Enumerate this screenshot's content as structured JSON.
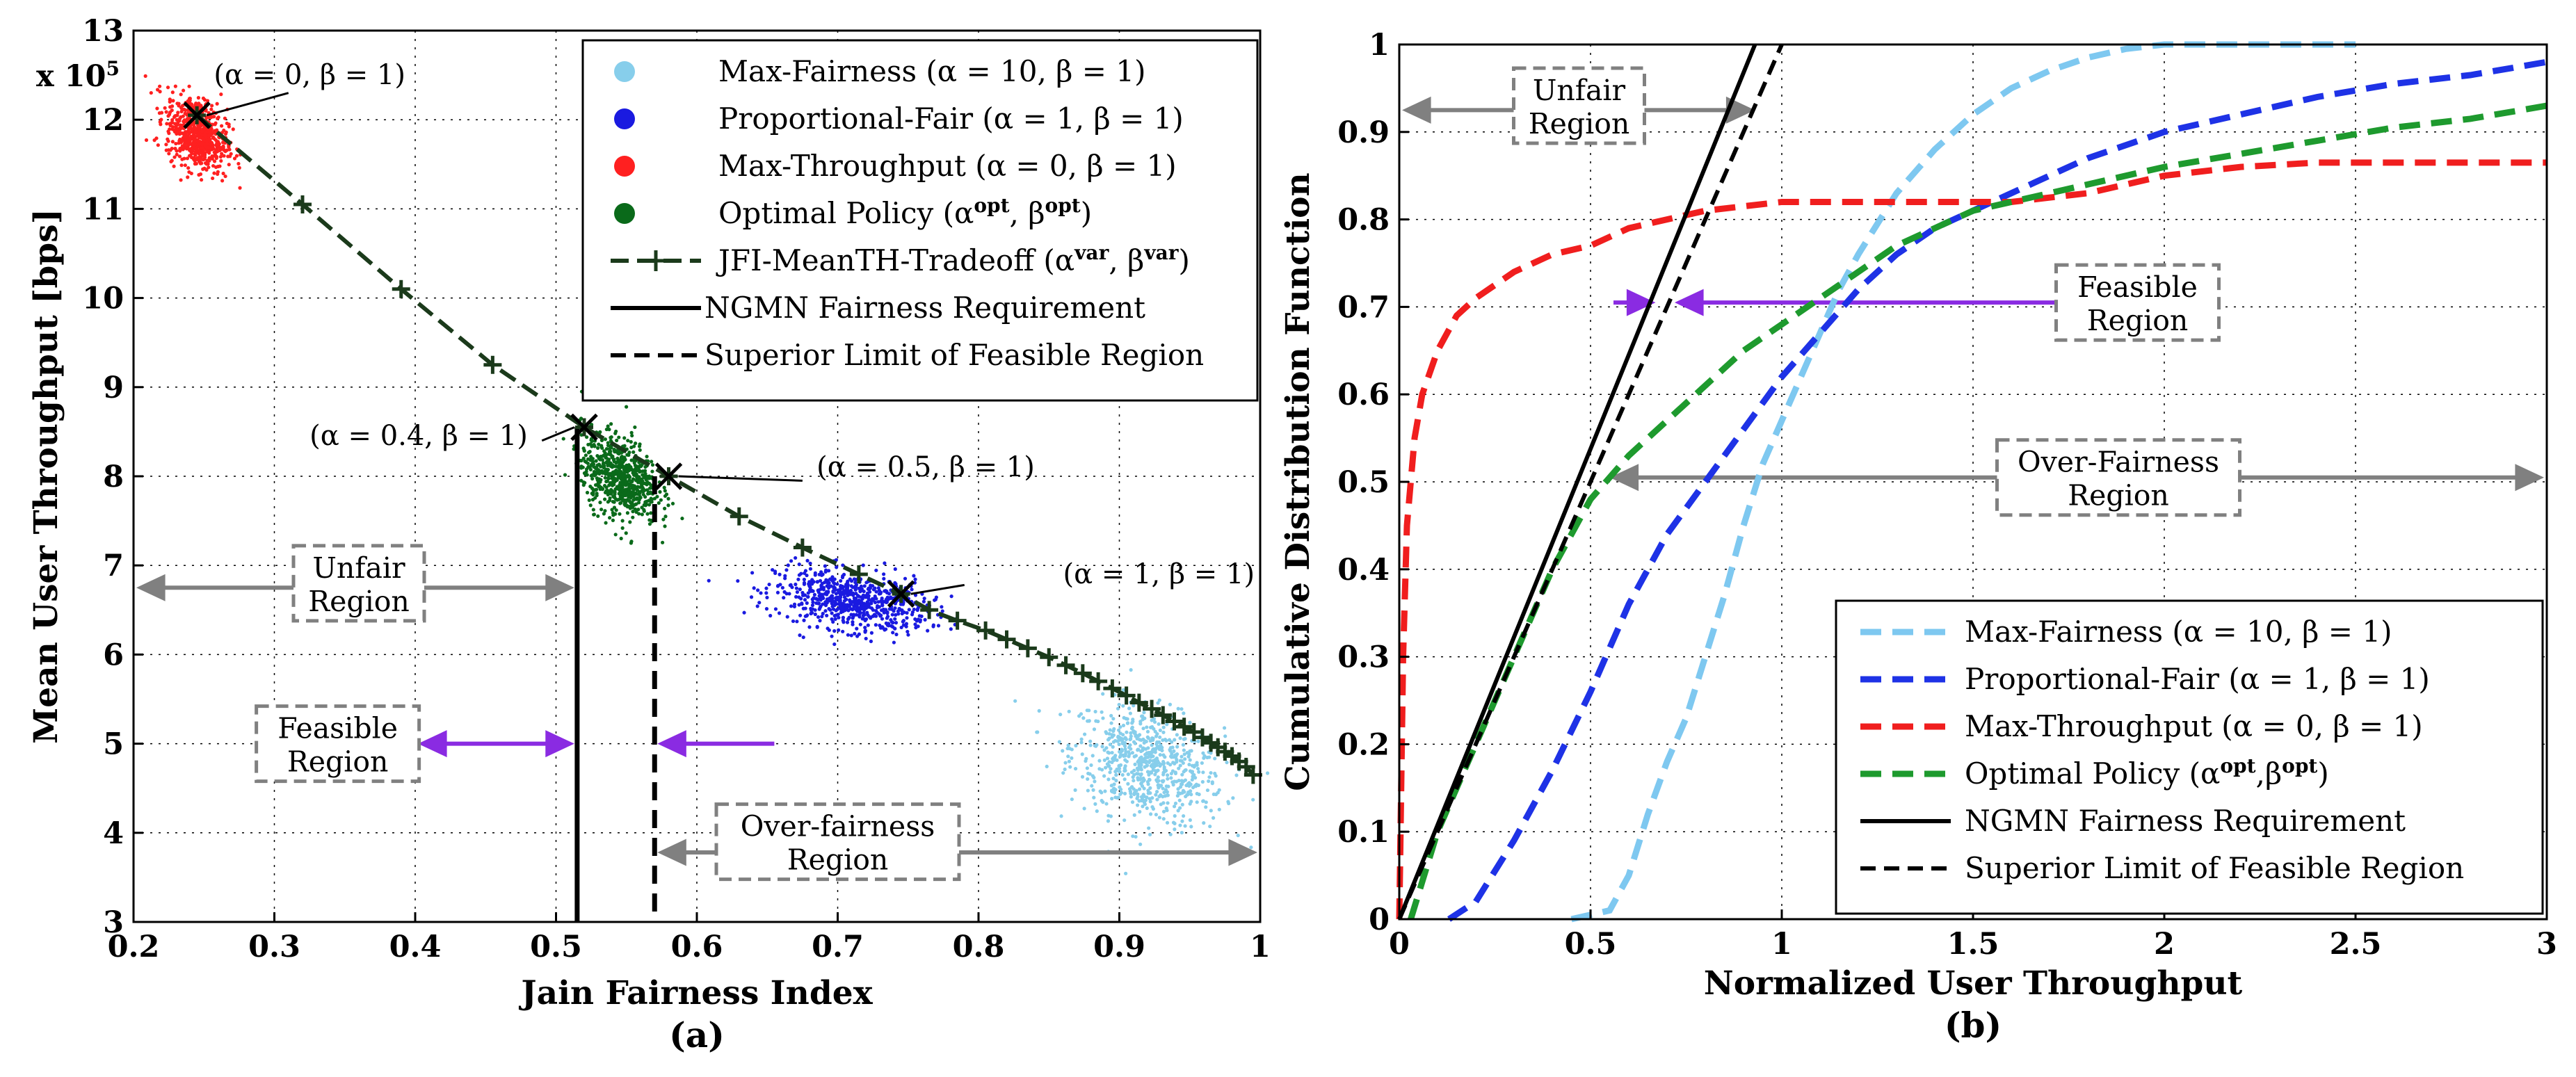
{
  "chart_data": [
    {
      "type": "scatter",
      "caption": "(a)",
      "xlabel": "Jain Fairness Index",
      "ylabel": "Mean User Throughput [bps]",
      "y_multiplier": "x 10",
      "y_multiplier_exp": "5",
      "xlim": [
        0.2,
        1.0
      ],
      "ylim": [
        3,
        13
      ],
      "xticks": [
        "0.2",
        "0.3",
        "0.4",
        "0.5",
        "0.6",
        "0.7",
        "0.8",
        "0.9",
        "1"
      ],
      "yticks": [
        "3",
        "4",
        "5",
        "6",
        "7",
        "8",
        "9",
        "10",
        "11",
        "12",
        "13"
      ],
      "grid": true,
      "legend_position": "top-right",
      "clusters": [
        {
          "name": "Max-Fairness",
          "label": "Max-Fairness (α = 10, β = 1)",
          "color": "#87CEEB",
          "x": 0.92,
          "y": 4.75,
          "sx": 0.03,
          "sy": 0.35
        },
        {
          "name": "Proportional-Fair",
          "label": "Proportional-Fair (α = 1, β = 1)",
          "color": "#1A1AE0",
          "x": 0.71,
          "y": 6.6,
          "sx": 0.03,
          "sy": 0.18
        },
        {
          "name": "Max-Throughput",
          "label": "Max-Throughput (α = 0, β = 1)",
          "color": "#FF2020",
          "x": 0.245,
          "y": 11.85,
          "sx": 0.012,
          "sy": 0.22
        },
        {
          "name": "Optimal Policy",
          "label": "Optimal Policy (α",
          "label_sup1": "opt",
          "label_mid": ", β",
          "label_sup2": "opt",
          "label_end": ")",
          "color": "#0A6A1A",
          "x": 0.545,
          "y": 8.0,
          "sx": 0.015,
          "sy": 0.25
        }
      ],
      "tradeoff": {
        "name": "JFI-MeanTH-Tradeoff",
        "label": "JFI-MeanTH-Tradeoff (α",
        "label_sup1": "var",
        "label_mid": ", β",
        "label_sup2": "var",
        "label_end": ")",
        "color": "#1B3A1B",
        "x": [
          0.245,
          0.32,
          0.39,
          0.455,
          0.52,
          0.58,
          0.63,
          0.675,
          0.715,
          0.745,
          0.765,
          0.785,
          0.805,
          0.82,
          0.835,
          0.85,
          0.862,
          0.874,
          0.885,
          0.895,
          0.905,
          0.914,
          0.923,
          0.931,
          0.939,
          0.946,
          0.953,
          0.959,
          0.965,
          0.97,
          0.975,
          0.98,
          0.985,
          0.99,
          0.995
        ],
        "y": [
          12.05,
          11.05,
          10.1,
          9.25,
          8.55,
          8.0,
          7.55,
          7.2,
          6.9,
          6.68,
          6.5,
          6.38,
          6.27,
          6.17,
          6.07,
          5.97,
          5.88,
          5.79,
          5.7,
          5.62,
          5.54,
          5.46,
          5.39,
          5.32,
          5.25,
          5.19,
          5.13,
          5.07,
          5.01,
          4.96,
          4.91,
          4.86,
          4.8,
          4.74,
          4.65
        ]
      },
      "vlines": [
        {
          "name": "NGMN Fairness Requirement",
          "label": "NGMN Fairness Requirement",
          "x": 0.515,
          "ytop": 8.55,
          "dash": "solid"
        },
        {
          "name": "Superior Limit of Feasible Region",
          "label": "Superior Limit of Feasible Region",
          "x": 0.57,
          "ytop": 8.0,
          "dash": "dashed"
        }
      ],
      "annotations": [
        {
          "text": "(α = 0, β = 1)",
          "x": 0.257,
          "y": 12.4
        },
        {
          "text": "(α = 0.4, β = 1)",
          "x": 0.325,
          "y": 8.35
        },
        {
          "text": "(α = 0.5, β = 1)",
          "x": 0.685,
          "y": 8.0
        },
        {
          "text": "(α = 1, β = 1)",
          "x": 0.86,
          "y": 6.8
        }
      ],
      "regions": [
        {
          "line1": "Unfair",
          "line2": "Region",
          "cx": 0.36,
          "cy": 6.8,
          "arrow_y": 6.75,
          "x_from": 0.2,
          "x_to": 0.515,
          "arrow_color": "#808080"
        },
        {
          "line1": "Feasible",
          "line2": "Region",
          "cx": 0.345,
          "cy": 5.0,
          "arrow_y": 5.0,
          "x_from": 0.4,
          "x_to": 0.515,
          "arrow_color": "#8A2BE2"
        },
        {
          "line1": "Over-fairness",
          "line2": "Region",
          "cx": 0.7,
          "cy": 3.9,
          "arrow_y": 3.78,
          "x_from": 0.57,
          "x_to": 1.0,
          "arrow_color": "#808080"
        }
      ],
      "feasible_right_arrow": {
        "x_from": 0.655,
        "x_to": 0.57,
        "y": 5.0,
        "color": "#8A2BE2"
      }
    },
    {
      "type": "line",
      "caption": "(b)",
      "xlabel": "Normalized User Throughput",
      "ylabel": "Cumulative Distribution Function",
      "xlim": [
        0,
        3
      ],
      "ylim": [
        0,
        1
      ],
      "xticks": [
        "0",
        "0.5",
        "1",
        "1.5",
        "2",
        "2.5",
        "3"
      ],
      "yticks": [
        "0",
        "0.1",
        "0.2",
        "0.3",
        "0.4",
        "0.5",
        "0.6",
        "0.7",
        "0.8",
        "0.9",
        "1"
      ],
      "grid": true,
      "legend_position": "bottom-right",
      "series": [
        {
          "name": "Max-Fairness",
          "label": "Max-Fairness (α = 10, β = 1)",
          "color": "#7EC8F0",
          "dash": "dashed",
          "x": [
            0.45,
            0.55,
            0.6,
            0.65,
            0.7,
            0.75,
            0.8,
            0.85,
            0.9,
            0.95,
            1.0,
            1.05,
            1.1,
            1.15,
            1.2,
            1.3,
            1.4,
            1.5,
            1.6,
            1.7,
            1.8,
            1.9,
            2.0,
            2.2,
            2.5
          ],
          "y": [
            0.0,
            0.01,
            0.05,
            0.12,
            0.18,
            0.23,
            0.3,
            0.37,
            0.45,
            0.52,
            0.57,
            0.62,
            0.67,
            0.72,
            0.76,
            0.83,
            0.88,
            0.92,
            0.95,
            0.97,
            0.985,
            0.995,
            1.0,
            1.0,
            1.0
          ]
        },
        {
          "name": "Proportional-Fair",
          "label": "Proportional-Fair (α = 1, β = 1)",
          "color": "#1E32E6",
          "dash": "dashed",
          "x": [
            0.13,
            0.2,
            0.3,
            0.4,
            0.5,
            0.6,
            0.7,
            0.8,
            0.9,
            1.0,
            1.1,
            1.2,
            1.3,
            1.4,
            1.5,
            1.6,
            1.8,
            2.0,
            2.2,
            2.4,
            2.6,
            2.8,
            3.0
          ],
          "y": [
            0.0,
            0.02,
            0.09,
            0.17,
            0.26,
            0.36,
            0.44,
            0.5,
            0.56,
            0.62,
            0.67,
            0.72,
            0.76,
            0.79,
            0.81,
            0.83,
            0.87,
            0.9,
            0.92,
            0.94,
            0.955,
            0.965,
            0.98
          ]
        },
        {
          "name": "Max-Throughput",
          "label": "Max-Throughput (α = 0, β = 1)",
          "color": "#F01E1E",
          "dash": "dashed",
          "x": [
            0.0,
            0.01,
            0.02,
            0.04,
            0.06,
            0.1,
            0.15,
            0.2,
            0.3,
            0.4,
            0.5,
            0.6,
            0.7,
            0.8,
            0.9,
            1.0,
            1.2,
            1.4,
            1.6,
            1.8,
            2.0,
            2.2,
            2.4,
            2.6,
            2.8,
            3.0
          ],
          "y": [
            0.0,
            0.3,
            0.45,
            0.55,
            0.6,
            0.65,
            0.69,
            0.71,
            0.74,
            0.76,
            0.77,
            0.79,
            0.8,
            0.81,
            0.815,
            0.82,
            0.82,
            0.82,
            0.82,
            0.83,
            0.85,
            0.86,
            0.865,
            0.865,
            0.865,
            0.865
          ]
        },
        {
          "name": "Optimal Policy",
          "label": "Optimal Policy (α",
          "label_sup1": "opt",
          "label_mid": ",β",
          "label_sup2": "opt",
          "label_end": ")",
          "color": "#1E9A2E",
          "dash": "dashed",
          "x": [
            0.03,
            0.1,
            0.2,
            0.3,
            0.4,
            0.5,
            0.6,
            0.7,
            0.8,
            0.9,
            1.0,
            1.1,
            1.2,
            1.3,
            1.4,
            1.5,
            1.6,
            1.8,
            2.0,
            2.2,
            2.4,
            2.6,
            2.8,
            3.0
          ],
          "y": [
            0.0,
            0.1,
            0.2,
            0.3,
            0.4,
            0.48,
            0.53,
            0.57,
            0.61,
            0.65,
            0.68,
            0.71,
            0.74,
            0.77,
            0.79,
            0.81,
            0.82,
            0.84,
            0.86,
            0.875,
            0.89,
            0.905,
            0.915,
            0.93
          ]
        },
        {
          "name": "NGMN Fairness Requirement",
          "label": "NGMN Fairness Requirement",
          "color": "#000000",
          "dash": "solid",
          "x": [
            0.0,
            0.93
          ],
          "y": [
            0.0,
            1.0
          ]
        },
        {
          "name": "Superior Limit of Feasible Region",
          "label": "Superior Limit of Feasible Region",
          "color": "#000000",
          "dash": "dashed",
          "x": [
            0.0,
            1.0
          ],
          "y": [
            0.0,
            1.0
          ]
        }
      ],
      "regions": [
        {
          "line1": "Unfair",
          "line2": "Region",
          "cx": 0.47,
          "cy": 0.93,
          "arrow_y": 0.925,
          "x_from": 0.0,
          "x_to": 0.93,
          "arrow_color": "#808080"
        },
        {
          "line1": "Feasible",
          "line2": "Region",
          "cx": 1.93,
          "cy": 0.705,
          "arrow_y": 0.705,
          "x_from": 0.54,
          "x_to": 0.7,
          "arrow_color": "#8A2BE2"
        },
        {
          "line1": "Over-Fairness",
          "line2": "Region",
          "cx": 1.88,
          "cy": 0.505,
          "arrow_y": 0.505,
          "x_from": 0.55,
          "x_to": 3.0,
          "arrow_color": "#808080"
        }
      ]
    }
  ]
}
